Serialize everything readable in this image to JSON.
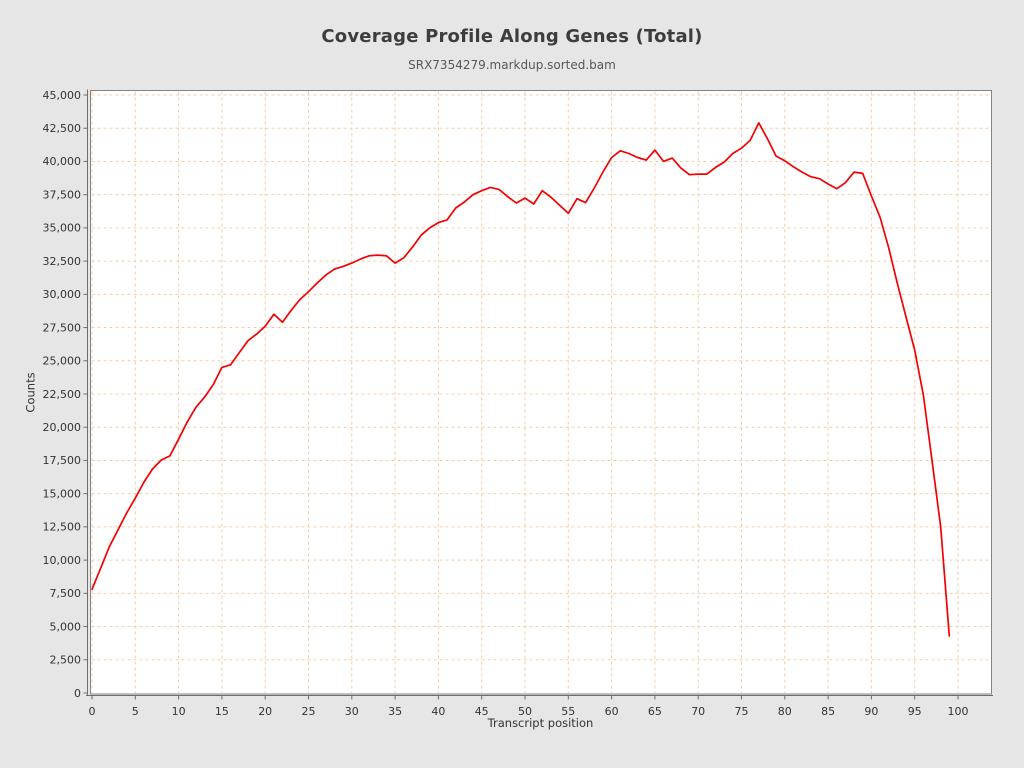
{
  "colors": {
    "background": "#e6e6e6",
    "plot_background": "#ffffff",
    "plot_border": "#848484",
    "axis": "#6e6e6e",
    "grid": "#f5cda6",
    "tick_text": "#333333",
    "title_text": "#3d3d3d",
    "series": "#f50000"
  },
  "chart_data": {
    "type": "line",
    "title": "Coverage Profile Along Genes (Total)",
    "subtitle": "SRX7354279.markdup.sorted.bam",
    "xlabel": "Transcript position",
    "ylabel": "Counts",
    "series_name": "SRX7354279.markdup.sorted.bam",
    "grid": true,
    "legend": "none",
    "xlim": [
      0,
      100
    ],
    "ylim": [
      0,
      45000
    ],
    "x_ticks": [
      0,
      5,
      10,
      15,
      20,
      25,
      30,
      35,
      40,
      45,
      50,
      55,
      60,
      65,
      70,
      75,
      80,
      85,
      90,
      95,
      100
    ],
    "y_ticks": [
      0,
      2500,
      5000,
      7500,
      10000,
      12500,
      15000,
      17500,
      20000,
      22500,
      25000,
      27500,
      30000,
      32500,
      35000,
      37500,
      40000,
      42500,
      45000
    ],
    "x": [
      0,
      1,
      2,
      3,
      4,
      5,
      6,
      7,
      8,
      9,
      10,
      11,
      12,
      13,
      14,
      15,
      16,
      17,
      18,
      19,
      20,
      21,
      22,
      23,
      24,
      25,
      26,
      27,
      28,
      29,
      30,
      31,
      32,
      33,
      34,
      35,
      36,
      37,
      38,
      39,
      40,
      41,
      42,
      43,
      44,
      45,
      46,
      47,
      48,
      49,
      50,
      51,
      52,
      53,
      54,
      55,
      56,
      57,
      58,
      59,
      60,
      61,
      62,
      63,
      64,
      65,
      66,
      67,
      68,
      69,
      70,
      71,
      72,
      73,
      74,
      75,
      76,
      77,
      78,
      79,
      80,
      81,
      82,
      83,
      84,
      85,
      86,
      87,
      88,
      89,
      90,
      91,
      92,
      93,
      94,
      95,
      96,
      97,
      98,
      99
    ],
    "values": [
      7800,
      9400,
      11000,
      12270,
      13540,
      14670,
      15880,
      16860,
      17530,
      17840,
      19100,
      20400,
      21500,
      22270,
      23200,
      24500,
      24700,
      25600,
      26500,
      27000,
      27600,
      28500,
      27900,
      28800,
      29600,
      30200,
      30850,
      31450,
      31900,
      32100,
      32350,
      32650,
      32900,
      32950,
      32900,
      32350,
      32750,
      33550,
      34450,
      35000,
      35400,
      35600,
      36500,
      36950,
      37500,
      37800,
      38050,
      37900,
      37350,
      36870,
      37240,
      36800,
      37800,
      37300,
      36700,
      36100,
      37200,
      36900,
      38000,
      39200,
      40300,
      40800,
      40600,
      40300,
      40100,
      40850,
      40000,
      40250,
      39500,
      39000,
      39050,
      39050,
      39550,
      39950,
      40600,
      41000,
      41600,
      42900,
      41700,
      40400,
      40050,
      39600,
      39200,
      38850,
      38700,
      38300,
      37950,
      38400,
      39200,
      39100,
      37400,
      35800,
      33500,
      30800,
      28300,
      25800,
      22400,
      17500,
      12500,
      4300
    ]
  }
}
